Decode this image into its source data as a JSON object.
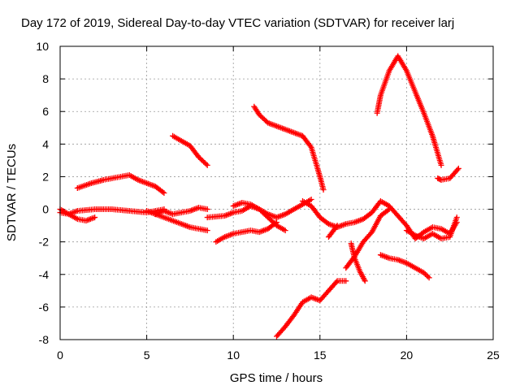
{
  "chart_data": {
    "type": "scatter",
    "title": "Day 172 of 2019, Sidereal Day-to-day VTEC variation (SDTVAR) for receiver larj",
    "xlabel": "GPS time / hours",
    "ylabel": "SDTVAR / TECUs",
    "xlim": [
      0,
      25
    ],
    "ylim": [
      -8,
      10
    ],
    "xticks": [
      0,
      5,
      10,
      15,
      20,
      25
    ],
    "yticks": [
      -8,
      -6,
      -4,
      -2,
      0,
      2,
      4,
      6,
      8,
      10
    ],
    "grid": true,
    "marker": "+",
    "color": "#ff0000",
    "series": [
      {
        "x": [
          0.0,
          0.5,
          1.0,
          2.0,
          3.0,
          4.0,
          5.0,
          6.0
        ],
        "y": [
          -0.2,
          -0.3,
          -0.1,
          0.0,
          0.0,
          -0.1,
          -0.2,
          0.0
        ]
      },
      {
        "x": [
          0.0,
          0.5,
          1.0,
          1.5,
          2.0
        ],
        "y": [
          0.0,
          -0.3,
          -0.6,
          -0.7,
          -0.5
        ]
      },
      {
        "x": [
          1.0,
          1.8,
          2.5,
          3.0,
          3.5,
          4.0,
          4.5,
          5.0,
          5.5,
          6.0
        ],
        "y": [
          1.3,
          1.6,
          1.8,
          1.9,
          2.0,
          2.1,
          1.8,
          1.6,
          1.4,
          1.0
        ]
      },
      {
        "x": [
          6.5,
          7.0,
          7.5,
          8.0,
          8.5
        ],
        "y": [
          4.5,
          4.2,
          3.9,
          3.2,
          2.7
        ]
      },
      {
        "x": [
          5.5,
          6.0,
          6.5,
          7.0,
          7.5,
          8.0,
          8.5
        ],
        "y": [
          -0.3,
          -0.1,
          -0.3,
          -0.2,
          -0.1,
          0.1,
          0.0
        ]
      },
      {
        "x": [
          5.0,
          6.0,
          7.0,
          7.5,
          8.0,
          8.5
        ],
        "y": [
          -0.1,
          -0.5,
          -0.9,
          -1.1,
          -1.2,
          -1.3
        ]
      },
      {
        "x": [
          8.5,
          9.5,
          10.0,
          10.5,
          11.0,
          11.5,
          12.0,
          12.5,
          13.0,
          13.5,
          14.0,
          14.5
        ],
        "y": [
          -0.5,
          -0.4,
          -0.2,
          -0.1,
          0.2,
          0.0,
          -0.3,
          -0.5,
          -0.3,
          0.0,
          0.3,
          0.6
        ]
      },
      {
        "x": [
          9.0,
          9.5,
          10.0,
          10.5,
          11.0,
          11.5,
          12.0,
          12.5
        ],
        "y": [
          -2.0,
          -1.7,
          -1.5,
          -1.4,
          -1.3,
          -1.4,
          -1.2,
          -0.8
        ]
      },
      {
        "x": [
          10.0,
          10.5,
          11.0,
          11.5,
          12.0,
          12.5,
          13.0
        ],
        "y": [
          0.2,
          0.4,
          0.3,
          0.0,
          -0.5,
          -1.0,
          -1.3
        ]
      },
      {
        "x": [
          11.2,
          11.5,
          12.0,
          12.5,
          13.0,
          13.5,
          14.0,
          14.5,
          15.0,
          15.2
        ],
        "y": [
          6.3,
          5.8,
          5.3,
          5.1,
          4.9,
          4.7,
          4.5,
          3.8,
          2.0,
          1.2
        ]
      },
      {
        "x": [
          14.0,
          14.5,
          15.0,
          15.5,
          16.0,
          16.5,
          17.0,
          17.5,
          18.0,
          18.5,
          19.0,
          19.5,
          20.0,
          20.5,
          21.0,
          21.5,
          22.0,
          22.5,
          22.9
        ],
        "y": [
          0.5,
          0.2,
          -0.5,
          -0.9,
          -1.1,
          -0.9,
          -0.8,
          -0.6,
          -0.2,
          0.5,
          0.2,
          -0.4,
          -1.0,
          -1.8,
          -1.4,
          -1.1,
          -1.2,
          -1.5,
          -0.8
        ]
      },
      {
        "x": [
          15.5,
          16.0
        ],
        "y": [
          -1.7,
          -1.0
        ]
      },
      {
        "x": [
          12.5,
          13.0,
          13.5,
          14.0,
          14.5,
          15.0,
          15.5,
          16.0,
          16.5
        ],
        "y": [
          -7.8,
          -7.2,
          -6.5,
          -5.7,
          -5.4,
          -5.6,
          -5.0,
          -4.4,
          -4.4
        ]
      },
      {
        "x": [
          16.5,
          17.0,
          17.5,
          18.0,
          18.5,
          19.0
        ],
        "y": [
          -3.6,
          -2.9,
          -2.0,
          -1.4,
          -0.4,
          0.0
        ]
      },
      {
        "x": [
          16.8,
          17.0,
          17.3,
          17.6
        ],
        "y": [
          -2.1,
          -3.0,
          -3.8,
          -4.4
        ]
      },
      {
        "x": [
          18.5,
          19.0,
          19.5,
          20.0,
          20.5,
          21.0,
          21.3
        ],
        "y": [
          -2.8,
          -3.0,
          -3.1,
          -3.3,
          -3.6,
          -3.9,
          -4.2
        ]
      },
      {
        "x": [
          18.3,
          18.5,
          19.0,
          19.5,
          20.0,
          20.5,
          21.0,
          21.5,
          22.0
        ],
        "y": [
          5.9,
          7.0,
          8.5,
          9.4,
          8.5,
          7.2,
          5.9,
          4.5,
          2.7
        ]
      },
      {
        "x": [
          21.8,
          22.0,
          22.5,
          23.0
        ],
        "y": [
          1.9,
          1.8,
          1.9,
          2.5
        ]
      },
      {
        "x": [
          20.0,
          20.5,
          21.0,
          21.5,
          22.0,
          22.5,
          22.9
        ],
        "y": [
          -1.3,
          -1.6,
          -1.8,
          -1.5,
          -1.8,
          -1.7,
          -0.5
        ]
      }
    ]
  }
}
